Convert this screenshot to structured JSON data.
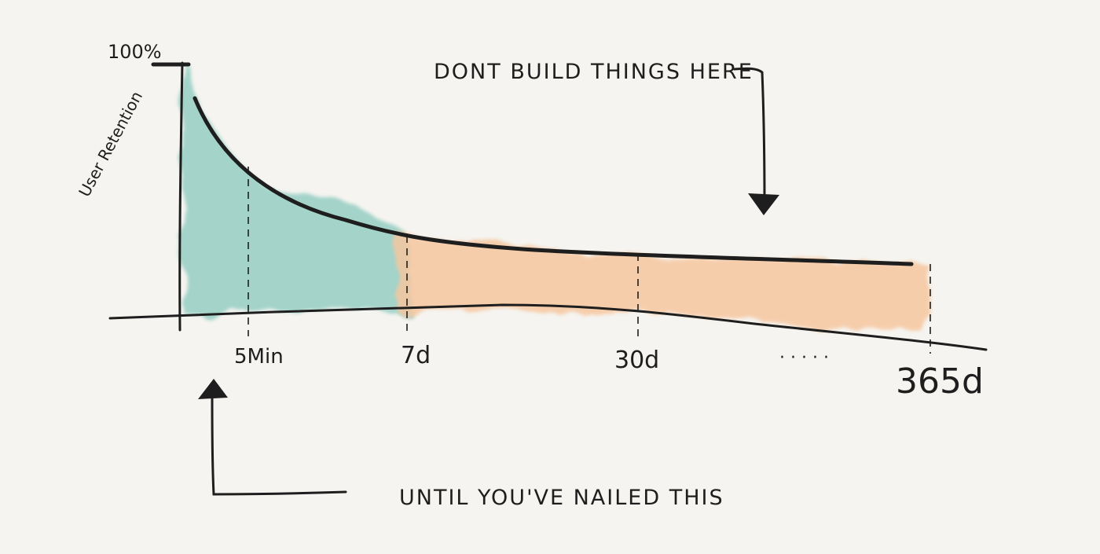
{
  "chart_data": {
    "type": "area",
    "title": "",
    "ylabel": "User Retention",
    "y_top_label": "100%",
    "xlabel": "",
    "x_ticks": [
      "5Min",
      "7d",
      "30d",
      "365d"
    ],
    "ellipsis": "· · · · ·",
    "series": [
      {
        "values": [
          {
            "x": "start",
            "y": 100
          },
          {
            "x": "5Min",
            "y": 62
          },
          {
            "x": "7d",
            "y": 34
          },
          {
            "x": "30d",
            "y": 26
          },
          {
            "x": "365d",
            "y": 24
          }
        ]
      }
    ],
    "regions": [
      {
        "from": "start",
        "to": "7d",
        "color": "#8fcbc0"
      },
      {
        "from": "7d",
        "to": "365d",
        "color": "#f6c7a0"
      }
    ],
    "annotations": [
      {
        "text": "DONT BUILD THINGS HERE",
        "points_to": "7d–365d region"
      },
      {
        "text": "UNTIL YOU'VE NAILED THIS",
        "points_to": "start–5Min region"
      }
    ]
  }
}
